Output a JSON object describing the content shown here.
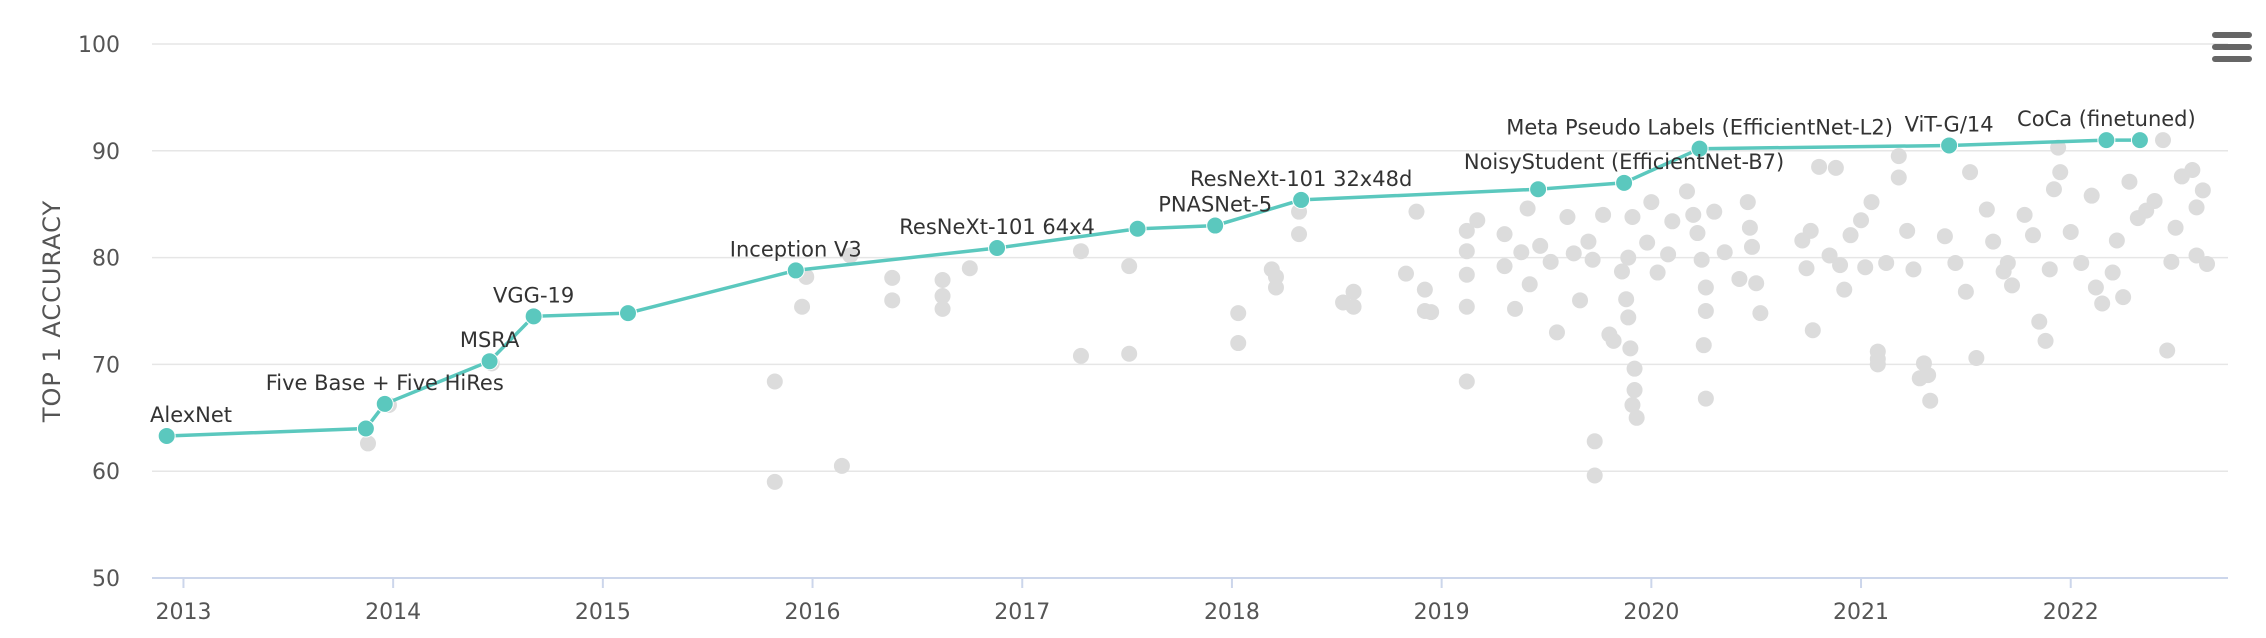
{
  "chart_data": {
    "type": "scatter",
    "ylabel": "TOP 1 ACCURACY",
    "ylim": [
      50,
      100
    ],
    "xlim": [
      2012.85,
      2022.75
    ],
    "y_ticks": [
      "50",
      "60",
      "70",
      "80",
      "90",
      "100"
    ],
    "x_ticks": [
      "2013",
      "2014",
      "2015",
      "2016",
      "2017",
      "2018",
      "2019",
      "2020",
      "2021",
      "2022"
    ],
    "grid": true,
    "colors": {
      "frontier": "#5BC8BE",
      "other": "#DCDCDC"
    },
    "series": [
      {
        "name": "",
        "style": "frontier",
        "points": [
          {
            "x": 2012.92,
            "y": 63.3,
            "label": "AlexNet"
          },
          {
            "x": 2013.87,
            "y": 64.0,
            "label": ""
          },
          {
            "x": 2013.96,
            "y": 66.3,
            "label": "Five Base + Five HiRes"
          },
          {
            "x": 2014.46,
            "y": 70.3,
            "label": "MSRA"
          },
          {
            "x": 2014.67,
            "y": 74.5,
            "label": "VGG-19"
          },
          {
            "x": 2015.12,
            "y": 74.8,
            "label": ""
          },
          {
            "x": 2015.92,
            "y": 78.8,
            "label": "Inception V3"
          },
          {
            "x": 2016.88,
            "y": 80.9,
            "label": "ResNeXt-101 64x4"
          },
          {
            "x": 2017.55,
            "y": 82.7,
            "label": ""
          },
          {
            "x": 2017.92,
            "y": 83.0,
            "label": "PNASNet-5"
          },
          {
            "x": 2018.33,
            "y": 85.4,
            "label": "ResNeXt-101 32x48d"
          },
          {
            "x": 2019.46,
            "y": 86.4,
            "label": ""
          },
          {
            "x": 2019.87,
            "y": 87.0,
            "label": "NoisyStudent (EfficientNet-B7)"
          },
          {
            "x": 2020.23,
            "y": 90.2,
            "label": "Meta Pseudo Labels (EfficientNet-L2)"
          },
          {
            "x": 2021.42,
            "y": 90.5,
            "label": "ViT-G/14"
          },
          {
            "x": 2022.17,
            "y": 91.0,
            "label": "CoCa (finetuned)"
          },
          {
            "x": 2022.33,
            "y": 91.0,
            "label": ""
          }
        ]
      },
      {
        "name": "",
        "style": "other",
        "points": [
          [
            2013.88,
            62.6
          ],
          [
            2013.98,
            66.2
          ],
          [
            2014.47,
            70.1
          ],
          [
            2015.82,
            68.4
          ],
          [
            2015.82,
            59.0
          ],
          [
            2015.95,
            75.4
          ],
          [
            2015.97,
            78.2
          ],
          [
            2016.14,
            60.5
          ],
          [
            2016.18,
            80.2
          ],
          [
            2016.38,
            78.1
          ],
          [
            2016.38,
            76.0
          ],
          [
            2016.62,
            77.9
          ],
          [
            2016.62,
            76.4
          ],
          [
            2016.62,
            75.2
          ],
          [
            2016.75,
            79.0
          ],
          [
            2017.28,
            80.6
          ],
          [
            2017.28,
            70.8
          ],
          [
            2017.51,
            79.2
          ],
          [
            2017.51,
            71.0
          ],
          [
            2018.03,
            74.8
          ],
          [
            2018.03,
            72.0
          ],
          [
            2018.19,
            78.9
          ],
          [
            2018.21,
            78.2
          ],
          [
            2018.21,
            77.2
          ],
          [
            2018.32,
            82.2
          ],
          [
            2018.32,
            84.3
          ],
          [
            2018.53,
            75.8
          ],
          [
            2018.58,
            76.8
          ],
          [
            2018.58,
            75.4
          ],
          [
            2018.83,
            78.5
          ],
          [
            2018.88,
            84.3
          ],
          [
            2018.92,
            75.0
          ],
          [
            2018.92,
            77.0
          ],
          [
            2018.95,
            74.9
          ],
          [
            2019.12,
            68.4
          ],
          [
            2019.12,
            75.4
          ],
          [
            2019.12,
            82.5
          ],
          [
            2019.12,
            80.6
          ],
          [
            2019.12,
            78.4
          ],
          [
            2019.17,
            83.5
          ],
          [
            2019.3,
            82.2
          ],
          [
            2019.3,
            79.2
          ],
          [
            2019.35,
            75.2
          ],
          [
            2019.38,
            80.5
          ],
          [
            2019.41,
            84.6
          ],
          [
            2019.42,
            77.5
          ],
          [
            2019.47,
            81.1
          ],
          [
            2019.52,
            79.6
          ],
          [
            2019.55,
            73.0
          ],
          [
            2019.6,
            83.8
          ],
          [
            2019.63,
            80.4
          ],
          [
            2019.66,
            76.0
          ],
          [
            2019.7,
            81.5
          ],
          [
            2019.72,
            79.8
          ],
          [
            2019.77,
            84.0
          ],
          [
            2019.8,
            72.8
          ],
          [
            2019.82,
            72.2
          ],
          [
            2019.86,
            78.7
          ],
          [
            2019.89,
            80.0
          ],
          [
            2019.91,
            83.8
          ],
          [
            2019.73,
            62.8
          ],
          [
            2019.73,
            59.6
          ],
          [
            2019.88,
            76.1
          ],
          [
            2019.89,
            74.4
          ],
          [
            2019.9,
            71.5
          ],
          [
            2019.92,
            69.6
          ],
          [
            2019.92,
            67.6
          ],
          [
            2019.91,
            66.2
          ],
          [
            2019.93,
            65.0
          ],
          [
            2019.98,
            81.4
          ],
          [
            2020.0,
            85.2
          ],
          [
            2020.03,
            78.6
          ],
          [
            2020.08,
            80.3
          ],
          [
            2020.1,
            83.4
          ],
          [
            2020.17,
            86.2
          ],
          [
            2020.2,
            84.0
          ],
          [
            2020.22,
            82.3
          ],
          [
            2020.24,
            79.8
          ],
          [
            2020.26,
            77.2
          ],
          [
            2020.26,
            75.0
          ],
          [
            2020.25,
            71.8
          ],
          [
            2020.26,
            66.8
          ],
          [
            2020.3,
            84.3
          ],
          [
            2020.35,
            80.5
          ],
          [
            2020.42,
            78.0
          ],
          [
            2020.46,
            85.2
          ],
          [
            2020.47,
            82.8
          ],
          [
            2020.48,
            81.0
          ],
          [
            2020.5,
            77.6
          ],
          [
            2020.52,
            74.8
          ],
          [
            2020.72,
            81.6
          ],
          [
            2020.74,
            79.0
          ],
          [
            2020.76,
            82.5
          ],
          [
            2020.77,
            73.2
          ],
          [
            2020.8,
            88.5
          ],
          [
            2020.85,
            80.2
          ],
          [
            2020.88,
            88.4
          ],
          [
            2020.9,
            79.3
          ],
          [
            2020.92,
            77.0
          ],
          [
            2020.95,
            82.1
          ],
          [
            2021.0,
            83.5
          ],
          [
            2021.02,
            79.1
          ],
          [
            2021.05,
            85.2
          ],
          [
            2021.08,
            71.2
          ],
          [
            2021.08,
            70.5
          ],
          [
            2021.08,
            70.0
          ],
          [
            2021.12,
            79.5
          ],
          [
            2021.18,
            87.5
          ],
          [
            2021.18,
            89.5
          ],
          [
            2021.22,
            82.5
          ],
          [
            2021.25,
            78.9
          ],
          [
            2021.28,
            68.7
          ],
          [
            2021.3,
            70.1
          ],
          [
            2021.32,
            69.0
          ],
          [
            2021.33,
            66.6
          ],
          [
            2021.4,
            82.0
          ],
          [
            2021.45,
            79.5
          ],
          [
            2021.5,
            76.8
          ],
          [
            2021.55,
            70.6
          ],
          [
            2021.52,
            88.0
          ],
          [
            2021.6,
            84.5
          ],
          [
            2021.63,
            81.5
          ],
          [
            2021.68,
            78.7
          ],
          [
            2021.7,
            79.5
          ],
          [
            2021.72,
            77.4
          ],
          [
            2021.78,
            84.0
          ],
          [
            2021.82,
            82.1
          ],
          [
            2021.85,
            74.0
          ],
          [
            2021.88,
            72.2
          ],
          [
            2021.9,
            78.9
          ],
          [
            2021.92,
            86.4
          ],
          [
            2021.94,
            90.3
          ],
          [
            2021.95,
            88.0
          ],
          [
            2022.0,
            82.4
          ],
          [
            2022.05,
            79.5
          ],
          [
            2022.1,
            85.8
          ],
          [
            2022.12,
            77.2
          ],
          [
            2022.15,
            75.7
          ],
          [
            2022.2,
            78.6
          ],
          [
            2022.22,
            81.6
          ],
          [
            2022.25,
            76.3
          ],
          [
            2022.28,
            87.1
          ],
          [
            2022.32,
            83.7
          ],
          [
            2022.36,
            84.4
          ],
          [
            2022.4,
            85.3
          ],
          [
            2022.46,
            71.3
          ],
          [
            2022.48,
            79.6
          ],
          [
            2022.5,
            82.8
          ],
          [
            2022.53,
            87.6
          ],
          [
            2022.58,
            88.2
          ],
          [
            2022.6,
            84.7
          ],
          [
            2022.63,
            86.3
          ],
          [
            2022.65,
            79.4
          ],
          [
            2022.6,
            80.2
          ],
          [
            2022.44,
            91.0
          ]
        ]
      }
    ]
  },
  "toolbar": {
    "menu_icon": "hamburger-icon"
  }
}
